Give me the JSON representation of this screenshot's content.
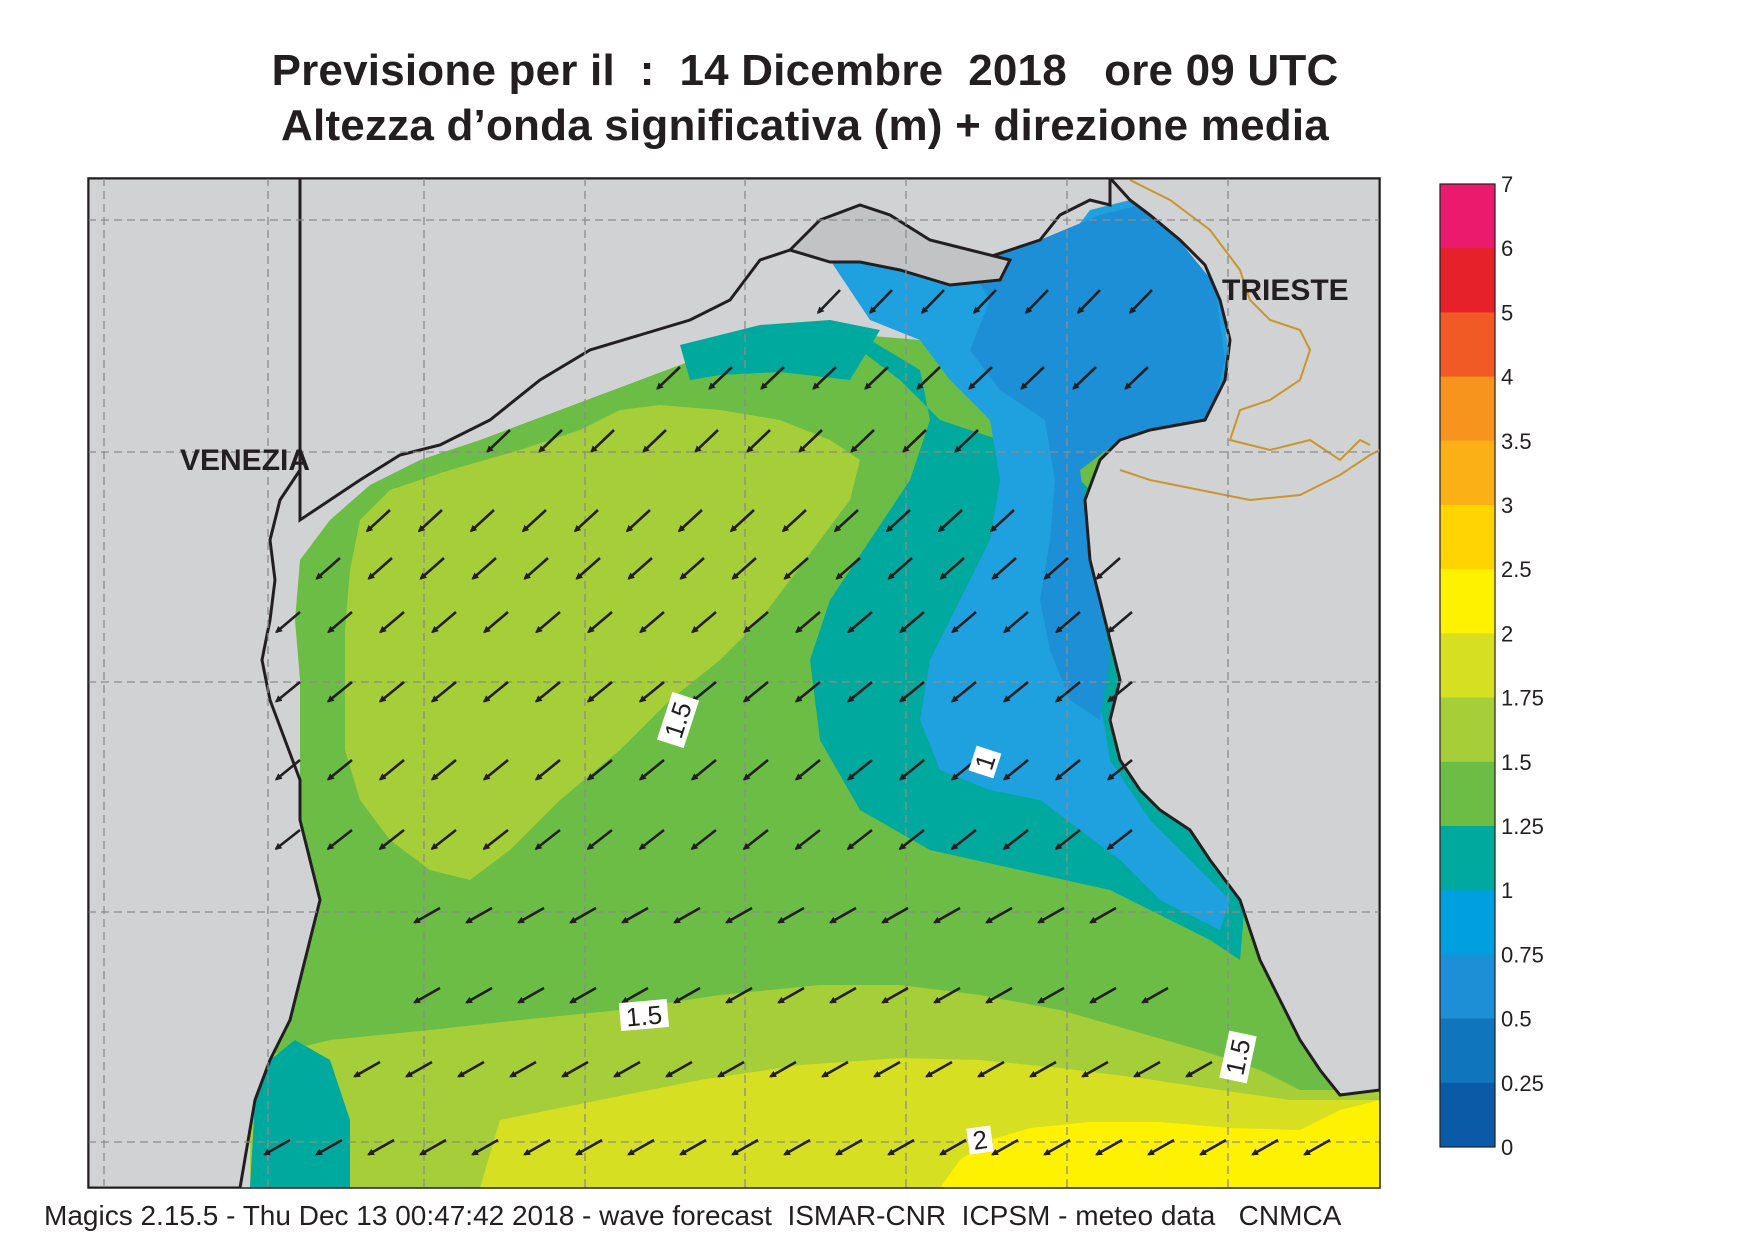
{
  "header": {
    "title_line1": "Previsione per il  :  14 Dicembre  2018   ore 09 UTC",
    "title_line2": "Altezza d’onda significativa (m) + direzione media"
  },
  "map": {
    "place_labels": {
      "venezia": "VENEZIA",
      "trieste": "TRIESTE"
    },
    "contour_labels": [
      "1.5",
      "1",
      "1.5",
      "1.5",
      "2"
    ],
    "arrow_direction": "toward south-west (west-south-west)",
    "colors": {
      "land": "#d1d2d4",
      "coast": "#231f20",
      "border": "#c8962c",
      "grid": "#8c8c8c",
      "arrow": "#231f20"
    }
  },
  "legend": {
    "ticks": [
      "7",
      "6",
      "5",
      "4",
      "3.5",
      "3",
      "2.5",
      "2",
      "1.75",
      "1.5",
      "1.25",
      "1",
      "0.75",
      "0.5",
      "0.25",
      "0"
    ],
    "colors_top_to_bottom": [
      "#ec1a6c",
      "#e6212a",
      "#f15a24",
      "#f7941d",
      "#fbb016",
      "#ffd400",
      "#fff200",
      "#d7df23",
      "#a6ce39",
      "#6cbd45",
      "#00a99d",
      "#00a0e0",
      "#1c8fd6",
      "#0f75bc",
      "#0a5aa8"
    ]
  },
  "footer": {
    "credit": "Magics 2.15.5 - Thu Dec 13 00:47:42 2018 - wave forecast  ISMAR-CNR  ICPSM - meteo data   CNMCA"
  }
}
